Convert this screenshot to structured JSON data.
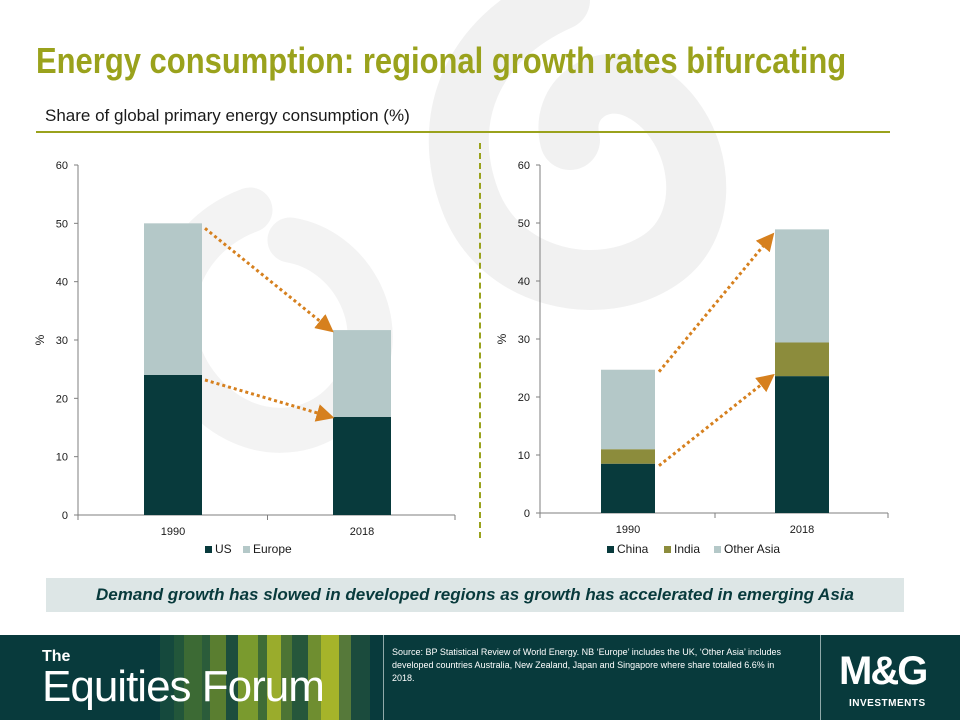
{
  "title": "Energy consumption: regional growth rates bifurcating",
  "subtitle": "Share of global primary energy consumption (%)",
  "callout": "Demand growth has slowed in developed regions as growth has accelerated in emerging Asia",
  "footer": {
    "brand_the": "The",
    "brand_name": "Equities Forum",
    "source_note": "Source: BP Statistical Review of World Energy. NB ‘Europe’ includes the UK, ‘Other Asia’ includes developed countries Australia, New Zealand, Japan and Singapore where share totalled 6.6% in 2018.",
    "logo_main": "M&G",
    "logo_sub": "INVESTMENTS"
  },
  "colors": {
    "accent": "#9aa21c",
    "dark": "#083a3c",
    "light": "#b4c8c8",
    "india": "#8c8c3c",
    "arrow": "#d6801e",
    "callout_bg": "#dde6e6"
  },
  "chart_data": [
    {
      "type": "bar",
      "stacked": true,
      "categories": [
        "1990",
        "2018"
      ],
      "series": [
        {
          "name": "US",
          "values": [
            24,
            16.8
          ],
          "color": "#083a3c"
        },
        {
          "name": "Europe",
          "values": [
            26,
            14.9
          ],
          "color": "#b4c8c8"
        }
      ],
      "ylabel": "%",
      "ylim": [
        0,
        60
      ],
      "yticks": [
        0,
        10,
        20,
        30,
        40,
        50,
        60
      ],
      "legend_position": "bottom",
      "grid": false
    },
    {
      "type": "bar",
      "stacked": true,
      "categories": [
        "1990",
        "2018"
      ],
      "series": [
        {
          "name": "China",
          "values": [
            8.5,
            23.6
          ],
          "color": "#083a3c"
        },
        {
          "name": "India",
          "values": [
            2.5,
            5.8
          ],
          "color": "#8c8c3c"
        },
        {
          "name": "Other Asia",
          "values": [
            13.7,
            19.5
          ],
          "color": "#b4c8c8"
        }
      ],
      "ylabel": "%",
      "ylim": [
        0,
        60
      ],
      "yticks": [
        0,
        10,
        20,
        30,
        40,
        50,
        60
      ],
      "legend_position": "bottom",
      "grid": false
    }
  ]
}
